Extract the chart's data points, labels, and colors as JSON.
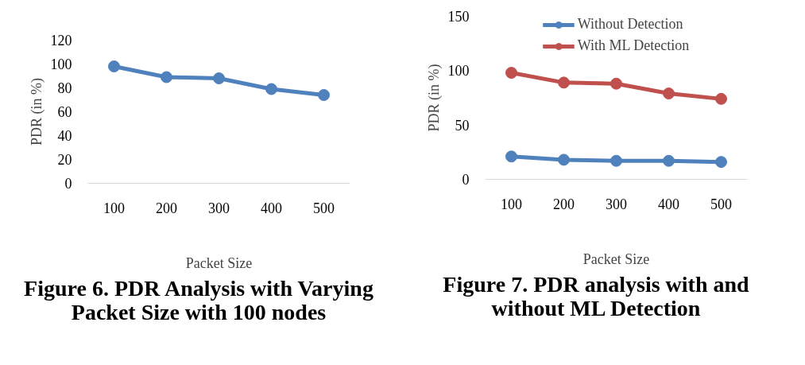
{
  "chart_data": [
    {
      "type": "line",
      "title": "Figure 6. PDR Analysis with Varying Packet Size with 100 nodes",
      "xlabel": "Packet Size",
      "ylabel": "PDR (in %)",
      "categories": [
        "100",
        "200",
        "300",
        "400",
        "500"
      ],
      "series": [
        {
          "color": "#4f81bd",
          "values": [
            98,
            89,
            88,
            79,
            74
          ]
        }
      ],
      "ylim": [
        0,
        120
      ],
      "yticks": [
        0,
        20,
        40,
        60,
        80,
        100,
        120
      ],
      "grid": false,
      "legend": false,
      "marker": "circle",
      "line_style": "solid"
    },
    {
      "type": "line",
      "title": "Figure 7. PDR analysis with and without ML Detection",
      "xlabel": "Packet Size",
      "ylabel": "PDR (in %)",
      "categories": [
        "100",
        "200",
        "300",
        "400",
        "500"
      ],
      "series": [
        {
          "name": "Without Detection",
          "color": "#4f81bd",
          "values": [
            21,
            18,
            17,
            17,
            16
          ]
        },
        {
          "name": "With ML Detection",
          "color": "#c0504d",
          "values": [
            98,
            89,
            88,
            79,
            74
          ]
        }
      ],
      "ylim": [
        0,
        150
      ],
      "yticks": [
        0,
        50,
        100,
        150
      ],
      "grid": false,
      "legend": "top",
      "marker": "circle",
      "line_style": "solid"
    }
  ]
}
